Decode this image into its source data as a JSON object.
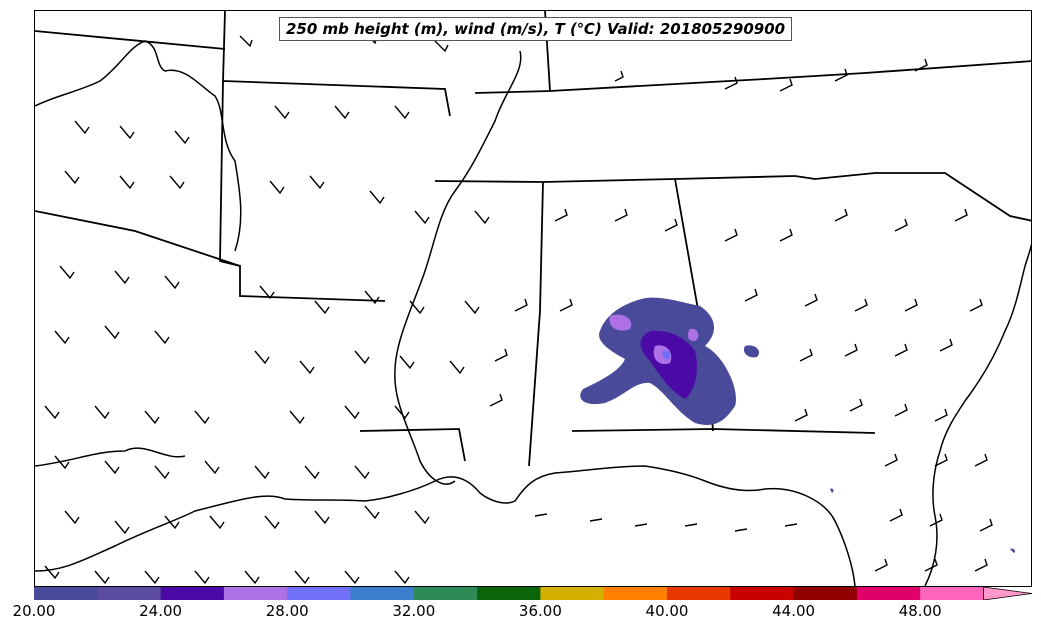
{
  "title": "250 mb height (m), wind (m/s), T (℃) Valid: 201805290900",
  "colorbar": {
    "colors": [
      "#4a4a9a",
      "#5b4ca0",
      "#4b0aa6",
      "#ad71e5",
      "#7070f8",
      "#3b80cc",
      "#2e8b57",
      "#0a640a",
      "#d4b000",
      "#ff8000",
      "#e83800",
      "#c80000",
      "#900000",
      "#e0006a",
      "#ff66bb",
      "#ff99cc"
    ],
    "tick_labels": [
      "20.00",
      "24.00",
      "28.00",
      "32.00",
      "36.00",
      "40.00",
      "44.00",
      "48.00"
    ]
  }
}
